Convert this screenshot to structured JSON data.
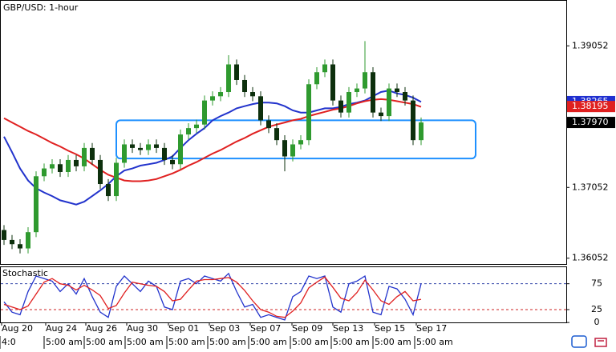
{
  "chart_data": {
    "type": "candlestick",
    "title": "GBP/USD: 1-hour",
    "open": [
      1.3645,
      1.3631,
      1.3625,
      1.3619,
      1.3642,
      1.3721,
      1.3732,
      1.3738,
      1.3727,
      1.3744,
      1.3735,
      1.3761,
      1.3744,
      1.371,
      1.3693,
      1.374,
      1.3766,
      1.3761,
      1.3758,
      1.3766,
      1.3761,
      1.3744,
      1.3738,
      1.378,
      1.3789,
      1.3794,
      1.3828,
      1.3834,
      1.384,
      1.3879,
      1.3857,
      1.384,
      1.3834,
      1.38,
      1.3789,
      1.3772,
      1.3749,
      1.3766,
      1.3772,
      1.3851,
      1.3868,
      1.3879,
      1.3828,
      1.3811,
      1.384,
      1.3845,
      1.3868,
      1.3811,
      1.3806,
      1.3845,
      1.384,
      1.3828,
      1.3772
    ],
    "high": [
      1.3652,
      1.3638,
      1.3632,
      1.3649,
      1.3728,
      1.3739,
      1.3745,
      1.3745,
      1.3751,
      1.3751,
      1.3768,
      1.3768,
      1.3751,
      1.3717,
      1.3747,
      1.3773,
      1.3773,
      1.3768,
      1.3773,
      1.3773,
      1.3768,
      1.3751,
      1.3787,
      1.3796,
      1.3801,
      1.3835,
      1.3841,
      1.3847,
      1.3892,
      1.3886,
      1.3864,
      1.3847,
      1.3841,
      1.3807,
      1.3796,
      1.3779,
      1.3773,
      1.3779,
      1.3858,
      1.3875,
      1.3886,
      1.3886,
      1.3835,
      1.3847,
      1.3852,
      1.3912,
      1.3875,
      1.3818,
      1.3852,
      1.3852,
      1.3847,
      1.3835,
      1.3804
    ],
    "low": [
      1.3624,
      1.3618,
      1.3612,
      1.3612,
      1.3635,
      1.3714,
      1.3725,
      1.372,
      1.372,
      1.3728,
      1.3728,
      1.3737,
      1.3703,
      1.3686,
      1.3686,
      1.3733,
      1.3754,
      1.3751,
      1.3751,
      1.3754,
      1.3737,
      1.3731,
      1.3731,
      1.3773,
      1.3782,
      1.3787,
      1.3821,
      1.3827,
      1.3833,
      1.385,
      1.3833,
      1.3827,
      1.3793,
      1.3782,
      1.3765,
      1.3728,
      1.3742,
      1.3759,
      1.3765,
      1.3844,
      1.3861,
      1.3821,
      1.3804,
      1.3804,
      1.3833,
      1.3838,
      1.3804,
      1.3799,
      1.3799,
      1.3833,
      1.3821,
      1.3765,
      1.3765
    ],
    "close": [
      1.3631,
      1.3625,
      1.3619,
      1.3642,
      1.3721,
      1.3732,
      1.3738,
      1.3727,
      1.3744,
      1.3735,
      1.3761,
      1.3744,
      1.371,
      1.3693,
      1.374,
      1.3766,
      1.3761,
      1.3758,
      1.3766,
      1.3761,
      1.3744,
      1.3738,
      1.378,
      1.3789,
      1.3794,
      1.3828,
      1.3834,
      1.384,
      1.3879,
      1.3857,
      1.384,
      1.3834,
      1.38,
      1.3789,
      1.3772,
      1.3749,
      1.3766,
      1.3772,
      1.3851,
      1.3868,
      1.3879,
      1.3828,
      1.3811,
      1.384,
      1.3845,
      1.3868,
      1.3811,
      1.3806,
      1.3845,
      1.384,
      1.3828,
      1.3772,
      1.3797
    ],
    "up_color": "#2f9a2f",
    "down_color": "#0d300d",
    "series": [
      {
        "color": "#2233cc",
        "values": [
          1.3777,
          1.3755,
          1.3732,
          1.3715,
          1.3704,
          1.3698,
          1.3693,
          1.3687,
          1.3684,
          1.3681,
          1.3685,
          1.3693,
          1.3701,
          1.371,
          1.3721,
          1.3729,
          1.3732,
          1.3736,
          1.3738,
          1.374,
          1.3744,
          1.3749,
          1.3761,
          1.3772,
          1.3781,
          1.3789,
          1.38,
          1.3806,
          1.3811,
          1.3817,
          1.382,
          1.3823,
          1.3825,
          1.3825,
          1.3824,
          1.382,
          1.3814,
          1.3811,
          1.3811,
          1.3814,
          1.3817,
          1.3817,
          1.3819,
          1.3823,
          1.3825,
          1.3828,
          1.3834,
          1.384,
          1.3842,
          1.3838,
          1.3836,
          1.3832,
          1.3826
        ]
      },
      {
        "color": "#e02020",
        "values": [
          1.3803,
          1.3797,
          1.3791,
          1.3785,
          1.378,
          1.3774,
          1.3768,
          1.3763,
          1.3757,
          1.3752,
          1.3746,
          1.3738,
          1.373,
          1.3723,
          1.3719,
          1.3715,
          1.3714,
          1.3714,
          1.3715,
          1.3717,
          1.3721,
          1.3725,
          1.373,
          1.3736,
          1.3741,
          1.3747,
          1.3753,
          1.3758,
          1.3764,
          1.377,
          1.3775,
          1.3781,
          1.3786,
          1.3791,
          1.3794,
          1.3797,
          1.38,
          1.3802,
          1.3806,
          1.3809,
          1.3812,
          1.3815,
          1.3817,
          1.382,
          1.3824,
          1.3827,
          1.3829,
          1.383,
          1.3829,
          1.3827,
          1.3825,
          1.3823,
          1.3819
        ]
      }
    ],
    "xlim": [
      -0.5,
      70.1
    ],
    "ylim": [
      1.3597,
      1.397
    ],
    "yticks": [
      1.39052,
      1.37052,
      1.36052
    ],
    "price_tags": [
      {
        "value": 1.38265,
        "label": "1.38265",
        "color": "#1f2fd0",
        "text_color": "#ffffff"
      },
      {
        "value": 1.38195,
        "label": "1.38195",
        "color": "#e02020",
        "text_color": "#ffffff"
      },
      {
        "value": 1.3797,
        "label": "1.37970",
        "color": "#000000",
        "text_color": "#ffffff"
      }
    ],
    "zone": {
      "x": [
        14,
        58.8
      ],
      "y": [
        1.3746,
        1.38
      ],
      "color": "#1e90ff"
    },
    "xticks": [
      {
        "value": -0.3,
        "label": "Aug 20"
      },
      {
        "value": 5.2,
        "label": "Aug 24"
      },
      {
        "value": 10.2,
        "label": "Aug 26"
      },
      {
        "value": 15.3,
        "label": "Aug 30"
      },
      {
        "value": 20.5,
        "label": "Sep 01"
      },
      {
        "value": 25.6,
        "label": "Sep 03"
      },
      {
        "value": 30.7,
        "label": "Sep 07"
      },
      {
        "value": 35.9,
        "label": "Sep 09"
      },
      {
        "value": 41,
        "label": "Sep 13"
      },
      {
        "value": 46.2,
        "label": "Sep 15"
      },
      {
        "value": 51.4,
        "label": "Sep 17"
      }
    ],
    "time_labels": [
      "4:0",
      "5:00 am",
      "5:00 am",
      "5:00 am",
      "5:00 am",
      "5:00 am",
      "5:00 am",
      "5:00 am",
      "5:00 am",
      "5:00 am",
      "5:00 am"
    ],
    "stochastic": {
      "title": "Stochastic",
      "ylim": [
        -23,
        107
      ],
      "yticks": [
        75,
        25,
        0
      ],
      "levels": [
        {
          "value": 75,
          "color": "#3344aa"
        },
        {
          "value": 25,
          "color": "#cc2222"
        }
      ],
      "series": [
        {
          "color": "#2233cc",
          "values": [
            40,
            20,
            15,
            60,
            90,
            85,
            80,
            60,
            75,
            55,
            85,
            50,
            20,
            10,
            70,
            90,
            75,
            60,
            80,
            70,
            30,
            25,
            80,
            85,
            75,
            90,
            85,
            80,
            95,
            60,
            30,
            35,
            10,
            15,
            10,
            5,
            50,
            60,
            90,
            85,
            90,
            30,
            20,
            75,
            80,
            90,
            20,
            15,
            70,
            65,
            45,
            15,
            75
          ]
        },
        {
          "color": "#e02020",
          "values": [
            35,
            30,
            25,
            32,
            55,
            78,
            85,
            75,
            72,
            63,
            72,
            63,
            52,
            27,
            33,
            57,
            78,
            75,
            72,
            70,
            60,
            42,
            45,
            63,
            80,
            83,
            83,
            85,
            87,
            78,
            62,
            42,
            25,
            20,
            12,
            10,
            22,
            38,
            67,
            78,
            88,
            68,
            47,
            42,
            58,
            82,
            63,
            42,
            35,
            50,
            60,
            42,
            45
          ]
        }
      ]
    }
  }
}
